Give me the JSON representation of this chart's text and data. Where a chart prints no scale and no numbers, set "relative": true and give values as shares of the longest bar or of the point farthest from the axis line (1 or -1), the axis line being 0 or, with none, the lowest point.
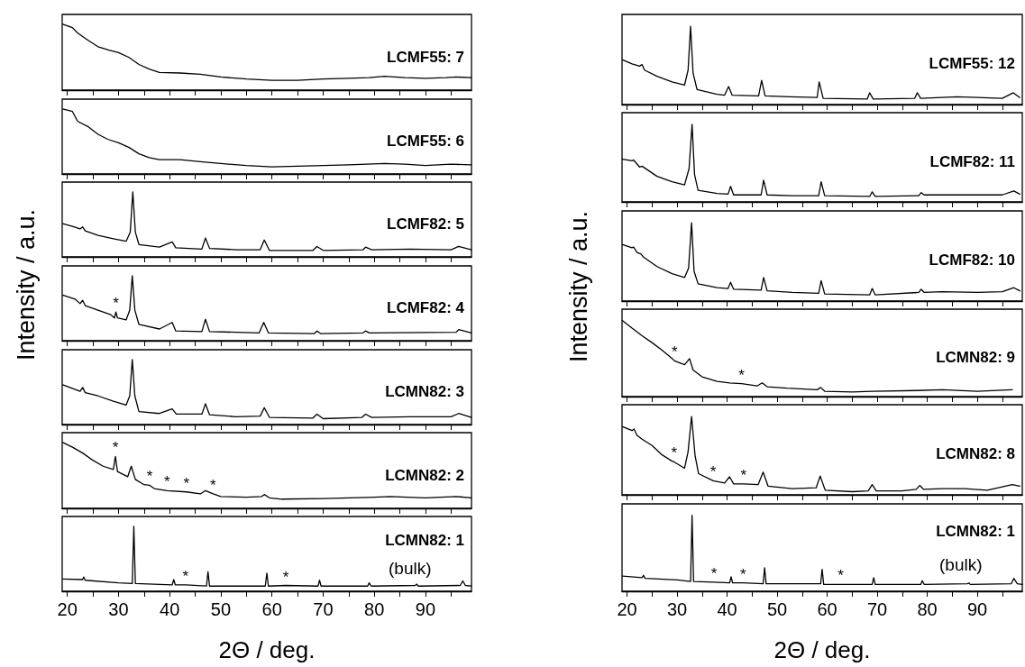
{
  "chart_data": [
    {
      "type": "line",
      "relative": true,
      "xlim": [
        19,
        99
      ],
      "xticks": [
        20,
        {
          "value": 25,
          "label": null
        },
        30,
        {
          "value": 35,
          "label": null
        },
        40,
        {
          "value": 45,
          "label": null
        },
        50,
        {
          "value": 55,
          "label": null
        },
        60,
        {
          "value": 65,
          "label": null
        },
        70,
        {
          "value": 75,
          "label": null
        },
        80,
        {
          "value": 85,
          "label": null
        },
        90,
        {
          "value": 95,
          "label": null
        }
      ],
      "tick_labels": false,
      "series": [
        {
          "name": "LCMF55: 7",
          "color": "#000000",
          "x": [
            19.1,
            21,
            22,
            24,
            26,
            28,
            30,
            32,
            34,
            36,
            38,
            42,
            46,
            50,
            55,
            60,
            65,
            70,
            75,
            79,
            82,
            86,
            90,
            94,
            96,
            99
          ],
          "values": [
            1.0,
            0.95,
            0.87,
            0.76,
            0.66,
            0.61,
            0.57,
            0.5,
            0.39,
            0.32,
            0.27,
            0.26,
            0.24,
            0.2,
            0.17,
            0.15,
            0.15,
            0.17,
            0.18,
            0.19,
            0.21,
            0.19,
            0.18,
            0.19,
            0.2,
            0.19
          ]
        }
      ]
    },
    {
      "type": "line",
      "relative": true,
      "xlim": [
        19,
        99
      ],
      "xticks": [
        20,
        {
          "value": 25,
          "label": null
        },
        30,
        {
          "value": 35,
          "label": null
        },
        40,
        {
          "value": 45,
          "label": null
        },
        50,
        {
          "value": 55,
          "label": null
        },
        60,
        {
          "value": 65,
          "label": null
        },
        70,
        {
          "value": 75,
          "label": null
        },
        80,
        {
          "value": 85,
          "label": null
        },
        90,
        {
          "value": 95,
          "label": null
        }
      ],
      "tick_labels": false,
      "series": [
        {
          "name": "LCMF55: 6",
          "color": "#000000",
          "x": [
            19.1,
            21,
            22,
            24,
            26,
            28,
            30,
            32,
            34,
            36,
            38,
            42,
            46,
            50,
            55,
            60,
            65,
            70,
            75,
            82,
            86,
            90,
            95,
            99
          ],
          "values": [
            1.0,
            0.96,
            0.81,
            0.73,
            0.61,
            0.53,
            0.48,
            0.41,
            0.31,
            0.25,
            0.22,
            0.22,
            0.19,
            0.16,
            0.13,
            0.11,
            0.12,
            0.13,
            0.14,
            0.16,
            0.15,
            0.13,
            0.15,
            0.14
          ]
        }
      ]
    },
    {
      "type": "line",
      "relative": true,
      "xlim": [
        19,
        99
      ],
      "xticks": [
        20,
        {
          "value": 25,
          "label": null
        },
        30,
        {
          "value": 35,
          "label": null
        },
        40,
        {
          "value": 45,
          "label": null
        },
        50,
        {
          "value": 55,
          "label": null
        },
        60,
        {
          "value": 65,
          "label": null
        },
        70,
        {
          "value": 75,
          "label": null
        },
        80,
        {
          "value": 85,
          "label": null
        },
        90,
        {
          "value": 95,
          "label": null
        }
      ],
      "tick_labels": false,
      "series": [
        {
          "name": "LCMF82: 5",
          "color": "#000000",
          "x": [
            19.1,
            21,
            22.5,
            23,
            23.5,
            26,
            29,
            31.5,
            32.3,
            32.8,
            33.3,
            34,
            38,
            40.5,
            41.2,
            46.3,
            47,
            47.8,
            53,
            57.7,
            58.5,
            59.5,
            68,
            68.8,
            70,
            77.8,
            78.3,
            79.5,
            87,
            95,
            96.5,
            99
          ],
          "values": [
            0.51,
            0.47,
            0.43,
            0.46,
            0.4,
            0.33,
            0.28,
            0.24,
            0.38,
            1.0,
            0.38,
            0.19,
            0.15,
            0.23,
            0.14,
            0.12,
            0.29,
            0.13,
            0.11,
            0.11,
            0.26,
            0.1,
            0.1,
            0.16,
            0.1,
            0.11,
            0.15,
            0.11,
            0.12,
            0.11,
            0.16,
            0.11
          ]
        }
      ]
    },
    {
      "type": "line",
      "relative": true,
      "xlim": [
        19,
        99
      ],
      "xticks": [
        20,
        {
          "value": 25,
          "label": null
        },
        30,
        {
          "value": 35,
          "label": null
        },
        40,
        {
          "value": 45,
          "label": null
        },
        50,
        {
          "value": 55,
          "label": null
        },
        60,
        {
          "value": 65,
          "label": null
        },
        70,
        {
          "value": 75,
          "label": null
        },
        80,
        {
          "value": 85,
          "label": null
        },
        90,
        {
          "value": 95,
          "label": null
        }
      ],
      "tick_labels": false,
      "annotations": [
        {
          "text": "*",
          "x": 29.5,
          "y": 0.44
        }
      ],
      "series": [
        {
          "name": "LCMF82: 4",
          "color": "#000000",
          "x": [
            19.1,
            21.5,
            22.5,
            23,
            23.5,
            26,
            28.5,
            29.2,
            29.5,
            29.8,
            31.5,
            32.2,
            32.7,
            33.2,
            34,
            38,
            40.5,
            41.2,
            46.3,
            47,
            47.8,
            57.5,
            58.4,
            59.3,
            68.3,
            68.8,
            69.5,
            77.8,
            78.3,
            79,
            96,
            96.5,
            99
          ],
          "values": [
            0.7,
            0.64,
            0.57,
            0.62,
            0.54,
            0.47,
            0.4,
            0.35,
            0.44,
            0.35,
            0.32,
            0.47,
            1.0,
            0.47,
            0.25,
            0.18,
            0.28,
            0.15,
            0.14,
            0.33,
            0.14,
            0.12,
            0.28,
            0.12,
            0.11,
            0.15,
            0.11,
            0.12,
            0.15,
            0.12,
            0.13,
            0.17,
            0.12
          ]
        }
      ]
    },
    {
      "type": "line",
      "relative": true,
      "xlim": [
        19,
        99
      ],
      "xticks": [
        20,
        {
          "value": 25,
          "label": null
        },
        30,
        {
          "value": 35,
          "label": null
        },
        40,
        {
          "value": 45,
          "label": null
        },
        50,
        {
          "value": 55,
          "label": null
        },
        60,
        {
          "value": 65,
          "label": null
        },
        70,
        {
          "value": 75,
          "label": null
        },
        80,
        {
          "value": 85,
          "label": null
        },
        90,
        {
          "value": 95,
          "label": null
        }
      ],
      "tick_labels": false,
      "ylabel": "Intensity / a.u.",
      "series": [
        {
          "name": "LCMN82: 3",
          "color": "#000000",
          "x": [
            19.1,
            22.5,
            23,
            23.5,
            26,
            29,
            31.5,
            32.2,
            32.7,
            33.2,
            34,
            38,
            40.5,
            41.3,
            46.3,
            47,
            47.8,
            53,
            57.7,
            58.5,
            59.5,
            68,
            68.8,
            70,
            77.6,
            78.3,
            79.5,
            87,
            95,
            96.5,
            99
          ],
          "values": [
            0.61,
            0.51,
            0.57,
            0.49,
            0.44,
            0.36,
            0.3,
            0.44,
            1.0,
            0.44,
            0.2,
            0.17,
            0.24,
            0.16,
            0.16,
            0.32,
            0.15,
            0.12,
            0.13,
            0.26,
            0.11,
            0.1,
            0.16,
            0.09,
            0.11,
            0.16,
            0.11,
            0.12,
            0.12,
            0.17,
            0.11
          ]
        }
      ]
    },
    {
      "type": "line",
      "relative": true,
      "xlim": [
        19,
        99
      ],
      "xticks": [
        20,
        {
          "value": 25,
          "label": null
        },
        30,
        {
          "value": 35,
          "label": null
        },
        40,
        {
          "value": 45,
          "label": null
        },
        50,
        {
          "value": 55,
          "label": null
        },
        60,
        {
          "value": 65,
          "label": null
        },
        70,
        {
          "value": 75,
          "label": null
        },
        80,
        {
          "value": 85,
          "label": null
        },
        90,
        {
          "value": 95,
          "label": null
        }
      ],
      "tick_labels": false,
      "annotations": [
        {
          "text": "*",
          "x": 29.4,
          "y": 0.79
        },
        {
          "text": "*",
          "x": 36.1,
          "y": 0.35
        },
        {
          "text": "*",
          "x": 39.5,
          "y": 0.27
        },
        {
          "text": "*",
          "x": 43.3,
          "y": 0.25
        },
        {
          "text": "*",
          "x": 48.5,
          "y": 0.22
        }
      ],
      "series": [
        {
          "name": "LCMN82: 2",
          "color": "#000000",
          "x": [
            19.1,
            21,
            23,
            25,
            27,
            29,
            29.4,
            29.8,
            31.8,
            32.5,
            33.3,
            35,
            36.1,
            37,
            39.5,
            43.3,
            46,
            47,
            48.5,
            50,
            55,
            58,
            58.5,
            59.5,
            62,
            70,
            80,
            83,
            90,
            96,
            99
          ],
          "values": [
            1.0,
            0.93,
            0.84,
            0.73,
            0.64,
            0.59,
            0.79,
            0.56,
            0.48,
            0.64,
            0.44,
            0.36,
            0.35,
            0.3,
            0.27,
            0.25,
            0.22,
            0.27,
            0.22,
            0.18,
            0.17,
            0.18,
            0.21,
            0.16,
            0.14,
            0.15,
            0.17,
            0.18,
            0.16,
            0.18,
            0.16
          ]
        }
      ]
    },
    {
      "type": "line",
      "relative": true,
      "xlim": [
        19,
        99
      ],
      "xticks": [
        20,
        {
          "value": 25,
          "label": null
        },
        30,
        {
          "value": 35,
          "label": null
        },
        40,
        {
          "value": 45,
          "label": null
        },
        50,
        {
          "value": 55,
          "label": null
        },
        60,
        {
          "value": 65,
          "label": null
        },
        70,
        {
          "value": 75,
          "label": null
        },
        80,
        {
          "value": 85,
          "label": null
        },
        90,
        {
          "value": 95,
          "label": null
        }
      ],
      "tick_labels": "x",
      "xlabel": "2Θ / deg.",
      "annotations": [
        "(bulk)",
        {
          "text": "*",
          "x": 43.1,
          "y": 0.1
        },
        {
          "text": "*",
          "x": 62.7,
          "y": 0.09
        }
      ],
      "series": [
        {
          "name": "LCMN82: 1",
          "color": "#000000",
          "x": [
            19.1,
            23,
            23.2,
            23.5,
            30,
            32.7,
            33,
            33.3,
            40.5,
            40.8,
            41.1,
            43.1,
            47.2,
            47.5,
            47.8,
            58.7,
            59,
            59.3,
            62.7,
            69,
            69.3,
            69.6,
            78.7,
            79,
            79.4,
            88,
            88.3,
            88.6,
            96.8,
            97.3,
            97.8,
            99
          ],
          "values": [
            0.19,
            0.18,
            0.22,
            0.17,
            0.13,
            0.12,
            1.0,
            0.12,
            0.1,
            0.18,
            0.1,
            0.1,
            0.08,
            0.3,
            0.08,
            0.08,
            0.28,
            0.08,
            0.09,
            0.08,
            0.17,
            0.08,
            0.08,
            0.13,
            0.08,
            0.09,
            0.11,
            0.08,
            0.09,
            0.16,
            0.09,
            0.08
          ]
        }
      ]
    },
    {
      "type": "line",
      "relative": true,
      "xlim": [
        19,
        99
      ],
      "xticks": [
        20,
        {
          "value": 25,
          "label": null
        },
        30,
        {
          "value": 35,
          "label": null
        },
        40,
        {
          "value": 45,
          "label": null
        },
        50,
        {
          "value": 55,
          "label": null
        },
        60,
        {
          "value": 65,
          "label": null
        },
        70,
        {
          "value": 75,
          "label": null
        },
        80,
        {
          "value": 85,
          "label": null
        },
        90,
        {
          "value": 95,
          "label": null
        }
      ],
      "tick_labels": false,
      "series": [
        {
          "name": "LCMF55: 12",
          "color": "#000000",
          "x": [
            19.1,
            21,
            22.5,
            23,
            23.5,
            26,
            29,
            31.5,
            32.2,
            32.7,
            33.2,
            34,
            38,
            39.5,
            40.3,
            41,
            46.3,
            46.9,
            47.6,
            52.5,
            58,
            58.4,
            59.2,
            68,
            68.5,
            69.2,
            77.5,
            78,
            78.7,
            86,
            90,
            95,
            97.2,
            98.5
          ],
          "values": [
            0.57,
            0.52,
            0.49,
            0.51,
            0.44,
            0.36,
            0.29,
            0.25,
            0.44,
            1.0,
            0.4,
            0.19,
            0.13,
            0.12,
            0.23,
            0.12,
            0.11,
            0.31,
            0.11,
            0.1,
            0.09,
            0.29,
            0.08,
            0.07,
            0.15,
            0.07,
            0.08,
            0.15,
            0.08,
            0.1,
            0.09,
            0.08,
            0.15,
            0.09
          ]
        }
      ]
    },
    {
      "type": "line",
      "relative": true,
      "xlim": [
        19,
        99
      ],
      "xticks": [
        20,
        {
          "value": 25,
          "label": null
        },
        30,
        {
          "value": 35,
          "label": null
        },
        40,
        {
          "value": 45,
          "label": null
        },
        50,
        {
          "value": 55,
          "label": null
        },
        60,
        {
          "value": 65,
          "label": null
        },
        70,
        {
          "value": 75,
          "label": null
        },
        80,
        {
          "value": 85,
          "label": null
        },
        90,
        {
          "value": 95,
          "label": null
        }
      ],
      "tick_labels": false,
      "series": [
        {
          "name": "LCMF82: 11",
          "color": "#000000",
          "x": [
            19.1,
            21,
            21.3,
            22.5,
            23,
            26,
            29,
            31.5,
            32.4,
            33,
            33.5,
            34.2,
            38,
            40.2,
            40.7,
            41.3,
            46.8,
            47.3,
            48,
            53,
            58.3,
            58.8,
            59.5,
            68.5,
            69,
            69.6,
            78.3,
            78.8,
            79.4,
            85,
            90,
            95,
            97.3,
            98.5
          ],
          "values": [
            0.55,
            0.53,
            0.54,
            0.45,
            0.46,
            0.33,
            0.26,
            0.22,
            0.43,
            1.0,
            0.35,
            0.15,
            0.11,
            0.1,
            0.2,
            0.09,
            0.09,
            0.28,
            0.09,
            0.08,
            0.08,
            0.26,
            0.08,
            0.07,
            0.13,
            0.07,
            0.08,
            0.12,
            0.09,
            0.09,
            0.09,
            0.09,
            0.14,
            0.1
          ]
        }
      ]
    },
    {
      "type": "line",
      "relative": true,
      "xlim": [
        19,
        99
      ],
      "xticks": [
        20,
        {
          "value": 25,
          "label": null
        },
        30,
        {
          "value": 35,
          "label": null
        },
        40,
        {
          "value": 45,
          "label": null
        },
        50,
        {
          "value": 55,
          "label": null
        },
        60,
        {
          "value": 65,
          "label": null
        },
        70,
        {
          "value": 75,
          "label": null
        },
        80,
        {
          "value": 85,
          "label": null
        },
        90,
        {
          "value": 95,
          "label": null
        }
      ],
      "tick_labels": false,
      "series": [
        {
          "name": "LCMF82: 10",
          "color": "#000000",
          "x": [
            19.1,
            21,
            21.3,
            22,
            22.8,
            23.3,
            26,
            29,
            31.5,
            32.3,
            32.9,
            33.4,
            34.2,
            38,
            40.2,
            40.7,
            41.3,
            46.8,
            47.3,
            48,
            53,
            58.3,
            58.8,
            59.5,
            68.5,
            69,
            69.6,
            78.3,
            78.8,
            79.4,
            83,
            90,
            95,
            97.3,
            98.5
          ],
          "values": [
            0.72,
            0.68,
            0.69,
            0.62,
            0.6,
            0.56,
            0.44,
            0.35,
            0.3,
            0.42,
            1.0,
            0.38,
            0.22,
            0.17,
            0.16,
            0.24,
            0.15,
            0.14,
            0.3,
            0.13,
            0.11,
            0.1,
            0.26,
            0.09,
            0.08,
            0.16,
            0.08,
            0.11,
            0.15,
            0.11,
            0.12,
            0.11,
            0.12,
            0.17,
            0.13
          ]
        }
      ]
    },
    {
      "type": "line",
      "relative": true,
      "xlim": [
        19,
        99
      ],
      "xticks": [
        20,
        {
          "value": 25,
          "label": null
        },
        30,
        {
          "value": 35,
          "label": null
        },
        40,
        {
          "value": 45,
          "label": null
        },
        50,
        {
          "value": 55,
          "label": null
        },
        60,
        {
          "value": 65,
          "label": null
        },
        70,
        {
          "value": 75,
          "label": null
        },
        80,
        {
          "value": 85,
          "label": null
        },
        90,
        {
          "value": 95,
          "label": null
        }
      ],
      "tick_labels": false,
      "ylabel": "Intensity / a.u.",
      "annotations": [
        {
          "text": "*",
          "x": 29.5,
          "y": 0.47
        },
        {
          "text": "*",
          "x": 42.9,
          "y": 0.17
        }
      ],
      "series": [
        {
          "name": "LCMN82: 9",
          "color": "#000000",
          "x": [
            19.1,
            21,
            23,
            25,
            27,
            29,
            29.5,
            31.5,
            32.5,
            33.2,
            35,
            38,
            40.5,
            42.9,
            46,
            47,
            48,
            52,
            58,
            58.7,
            59.5,
            65,
            69,
            78,
            83,
            90,
            97
          ],
          "values": [
            1.0,
            0.9,
            0.8,
            0.71,
            0.61,
            0.5,
            0.47,
            0.42,
            0.5,
            0.35,
            0.26,
            0.2,
            0.18,
            0.17,
            0.14,
            0.18,
            0.13,
            0.11,
            0.09,
            0.12,
            0.07,
            0.06,
            0.07,
            0.08,
            0.09,
            0.07,
            0.09
          ]
        }
      ]
    },
    {
      "type": "line",
      "relative": true,
      "xlim": [
        19,
        99
      ],
      "xticks": [
        20,
        {
          "value": 25,
          "label": null
        },
        30,
        {
          "value": 35,
          "label": null
        },
        40,
        {
          "value": 45,
          "label": null
        },
        50,
        {
          "value": 55,
          "label": null
        },
        60,
        {
          "value": 65,
          "label": null
        },
        70,
        {
          "value": 75,
          "label": null
        },
        80,
        {
          "value": 85,
          "label": null
        },
        90,
        {
          "value": 95,
          "label": null
        }
      ],
      "tick_labels": false,
      "annotations": [
        {
          "text": "*",
          "x": 29.4,
          "y": 0.42
        },
        {
          "text": "*",
          "x": 37.2,
          "y": 0.18
        },
        {
          "text": "*",
          "x": 43.3,
          "y": 0.14
        }
      ],
      "series": [
        {
          "name": "LCMN82: 8",
          "color": "#000000",
          "x": [
            19.1,
            21,
            21.4,
            22,
            23,
            25,
            27,
            29,
            29.4,
            31.5,
            32.2,
            32.9,
            33.6,
            34.3,
            37.2,
            39.5,
            40.5,
            41.3,
            43.3,
            46.2,
            47.2,
            48.2,
            53,
            57.8,
            58.6,
            59.6,
            65,
            68.2,
            69,
            69.8,
            75,
            77.8,
            78.5,
            79.3,
            83,
            87.5,
            92,
            97,
            98.5
          ],
          "values": [
            0.87,
            0.82,
            0.84,
            0.76,
            0.71,
            0.63,
            0.51,
            0.43,
            0.42,
            0.34,
            0.55,
            1.0,
            0.5,
            0.27,
            0.18,
            0.15,
            0.23,
            0.14,
            0.14,
            0.13,
            0.29,
            0.11,
            0.08,
            0.09,
            0.24,
            0.06,
            0.04,
            0.05,
            0.13,
            0.05,
            0.05,
            0.07,
            0.12,
            0.07,
            0.08,
            0.08,
            0.06,
            0.13,
            0.11
          ]
        }
      ]
    },
    {
      "type": "line",
      "relative": true,
      "xlim": [
        19,
        99
      ],
      "xticks": [
        20,
        {
          "value": 25,
          "label": null
        },
        30,
        {
          "value": 35,
          "label": null
        },
        40,
        {
          "value": 45,
          "label": null
        },
        50,
        {
          "value": 55,
          "label": null
        },
        60,
        {
          "value": 65,
          "label": null
        },
        70,
        {
          "value": 75,
          "label": null
        },
        80,
        {
          "value": 85,
          "label": null
        },
        90,
        {
          "value": 95,
          "label": null
        }
      ],
      "tick_labels": "x",
      "xlabel": "2Θ / deg.",
      "annotations": [
        "(bulk)",
        {
          "text": "*",
          "x": 37.4,
          "y": 0.12
        },
        {
          "text": "*",
          "x": 43.2,
          "y": 0.11
        },
        {
          "text": "*",
          "x": 62.7,
          "y": 0.09
        }
      ],
      "series": [
        {
          "name": "LCMN82: 1",
          "color": "#000000",
          "x": [
            19.1,
            23,
            23.3,
            23.6,
            30,
            32.7,
            33,
            33.3,
            37.4,
            40.5,
            40.8,
            41.1,
            43.2,
            47.2,
            47.5,
            47.8,
            58.7,
            59,
            59.3,
            62.7,
            69,
            69.3,
            69.6,
            78.7,
            79,
            79.4,
            88,
            88.3,
            88.6,
            96.8,
            97.3,
            98,
            99
          ],
          "values": [
            0.2,
            0.18,
            0.21,
            0.17,
            0.15,
            0.13,
            1.0,
            0.13,
            0.12,
            0.11,
            0.19,
            0.11,
            0.11,
            0.1,
            0.31,
            0.1,
            0.1,
            0.29,
            0.09,
            0.09,
            0.09,
            0.18,
            0.09,
            0.09,
            0.14,
            0.09,
            0.1,
            0.11,
            0.09,
            0.1,
            0.17,
            0.1,
            0.09
          ]
        }
      ]
    }
  ]
}
